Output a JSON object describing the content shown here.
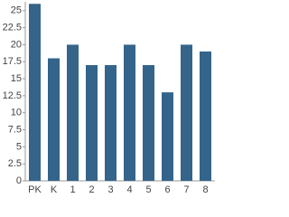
{
  "chart_data": {
    "type": "bar",
    "categories": [
      "PK",
      "K",
      "1",
      "2",
      "3",
      "4",
      "5",
      "6",
      "7",
      "8"
    ],
    "values": [
      26,
      18,
      20,
      17,
      17,
      20,
      17,
      13,
      20,
      19
    ],
    "color": "#34648a",
    "ylim": [
      0,
      26.3
    ],
    "yticks": [
      0,
      2.5,
      5,
      7.5,
      10,
      12.5,
      15,
      17.5,
      20,
      22.5,
      25
    ],
    "grid": false
  }
}
